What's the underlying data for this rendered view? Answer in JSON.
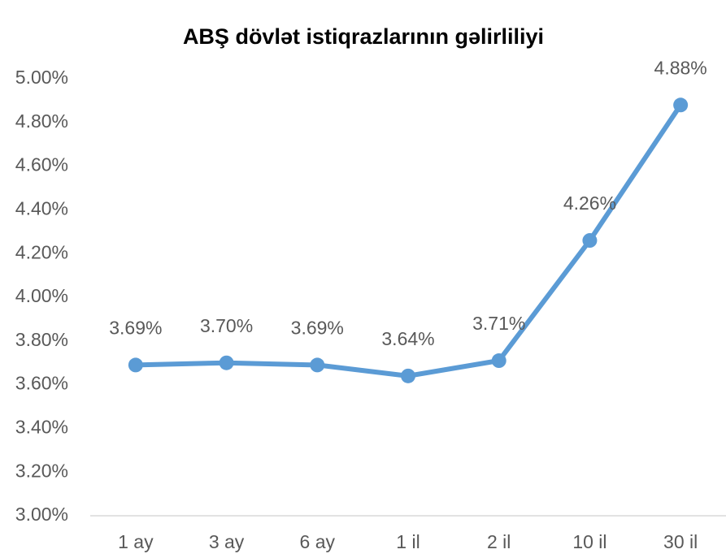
{
  "chart_data": {
    "type": "line",
    "title": "ABŞ dövlət istiqrazlarının gəlirliliyi",
    "categories": [
      "1 ay",
      "3 ay",
      "6 ay",
      "1 il",
      "2 il",
      "10 il",
      "30 il"
    ],
    "series": [
      {
        "name": "Gəlirlilik",
        "color": "#5b9bd5",
        "values": [
          3.69,
          3.7,
          3.69,
          3.64,
          3.71,
          4.26,
          4.88
        ],
        "value_labels": [
          "3.69%",
          "3.70%",
          "3.69%",
          "3.64%",
          "3.71%",
          "4.26%",
          "4.88%"
        ]
      }
    ],
    "ylim": [
      3.0,
      5.0
    ],
    "yticks": [
      {
        "value": 3.0,
        "label": "3.00%"
      },
      {
        "value": 3.2,
        "label": "3.20%"
      },
      {
        "value": 3.4,
        "label": "3.40%"
      },
      {
        "value": 3.6,
        "label": "3.60%"
      },
      {
        "value": 3.8,
        "label": "3.80%"
      },
      {
        "value": 4.0,
        "label": "4.00%"
      },
      {
        "value": 4.2,
        "label": "4.20%"
      },
      {
        "value": 4.4,
        "label": "4.40%"
      },
      {
        "value": 4.6,
        "label": "4.60%"
      },
      {
        "value": 4.8,
        "label": "4.80%"
      },
      {
        "value": 5.0,
        "label": "5.00%"
      }
    ],
    "grid": false
  }
}
